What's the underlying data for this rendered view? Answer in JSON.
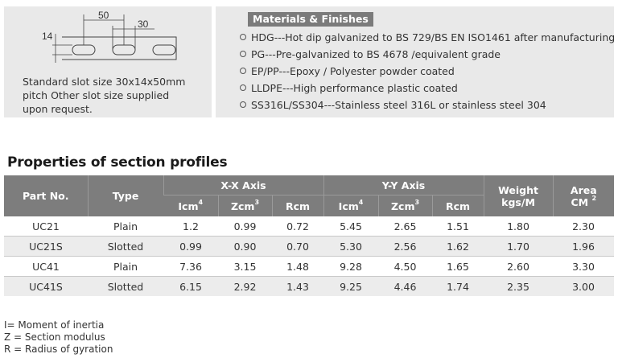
{
  "slot_panel": {
    "dim_pitch": "50",
    "dim_length": "30",
    "dim_height": "14",
    "caption": [
      "Standard slot size 30x14x50mm",
      "pitch  Other slot size supplied",
      "upon request."
    ]
  },
  "materials": {
    "header": "Materials & Finishes",
    "items": [
      "HDG---Hot dip galvanized to BS 729/BS EN ISO1461 after manufacturing",
      "PG---Pre-galvanized to BS 4678 /equivalent grade",
      "EP/PP---Epoxy / Polyester powder coated",
      "LLDPE---High performance plastic coated",
      "SS316L/SS304---Stainless steel 316L or stainless steel 304"
    ]
  },
  "section_title": "Properties of section profiles",
  "table": {
    "headers": {
      "part_no": "Part No.",
      "type": "Type",
      "xx_axis": "X-X  Axis",
      "yy_axis": "Y-Y  Axis",
      "weight_line1": "Weight",
      "weight_line2": "kgs/M",
      "area_line1": "Area",
      "area_line2": "CM",
      "area_sup": "2",
      "icm": "Icm",
      "icm_sup": "4",
      "zcm": "Zcm",
      "zcm_sup": "3",
      "rcm": "Rcm"
    },
    "rows": [
      [
        "UC21",
        "Plain",
        "1.2",
        "0.99",
        "0.72",
        "5.45",
        "2.65",
        "1.51",
        "1.80",
        "2.30"
      ],
      [
        "UC21S",
        "Slotted",
        "0.99",
        "0.90",
        "0.70",
        "5.30",
        "2.56",
        "1.62",
        "1.70",
        "1.96"
      ],
      [
        "UC41",
        "Plain",
        "7.36",
        "3.15",
        "1.48",
        "9.28",
        "4.50",
        "1.65",
        "2.60",
        "3.30"
      ],
      [
        "UC41S",
        "Slotted",
        "6.15",
        "2.92",
        "1.43",
        "9.25",
        "4.46",
        "1.74",
        "2.35",
        "3.00"
      ]
    ]
  },
  "legend": [
    "I= Moment of inertia",
    "Z = Section modulus",
    "R = Radius of gyration"
  ]
}
